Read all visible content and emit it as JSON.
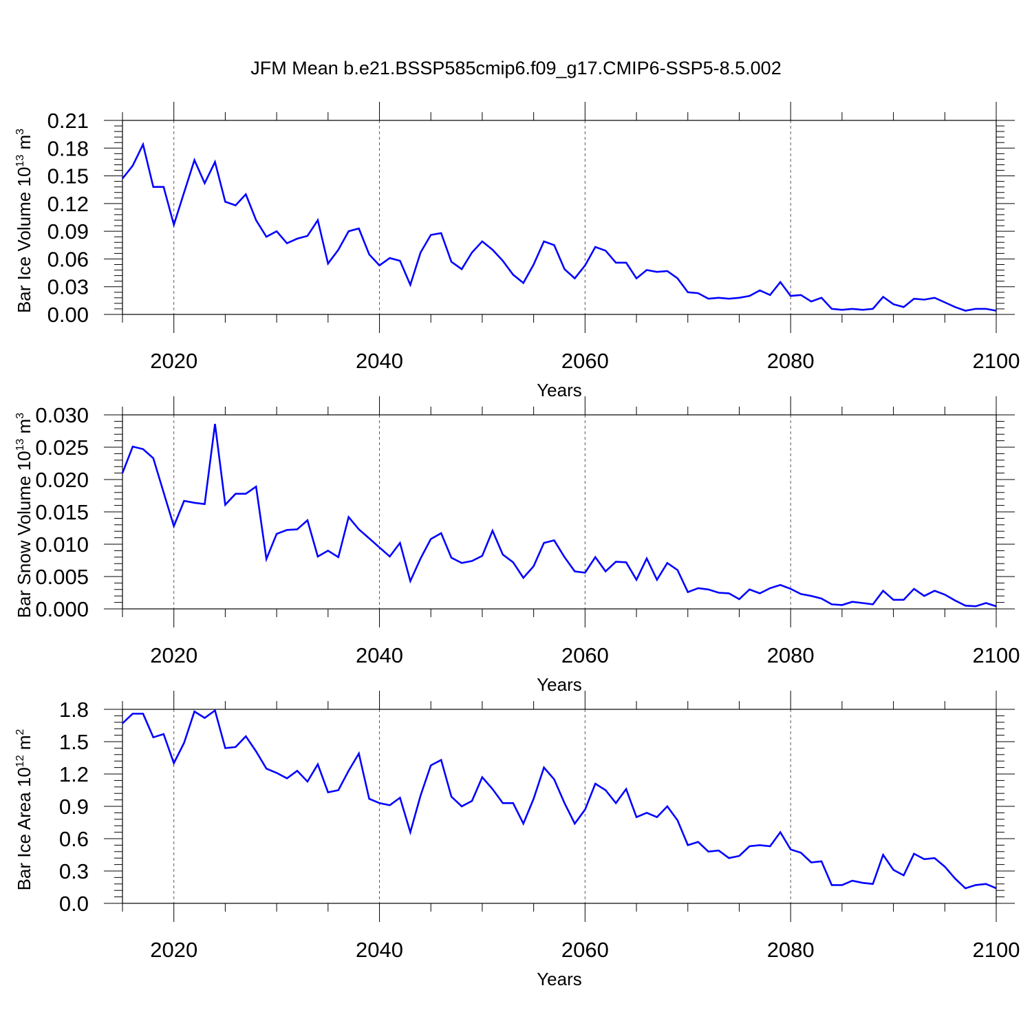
{
  "title": "JFM Mean b.e21.BSSP585cmip6.f09_g17.CMIP6-SSP5-8.5.002",
  "colors": {
    "line": "#0000ff",
    "axis": "#000000",
    "grid": "#000000"
  },
  "chart_data": [
    {
      "type": "line",
      "xlabel": "Years",
      "ylabel": "Bar Ice Volume 10",
      "ylabel_sup": "13",
      "ylabel_unit": " m",
      "ylabel_unit_sup": "3",
      "xlim": [
        2015,
        2100
      ],
      "ylim": [
        0,
        0.21
      ],
      "yticks": [
        "0.00",
        "0.03",
        "0.06",
        "0.09",
        "0.12",
        "0.15",
        "0.18",
        "0.21"
      ],
      "xticks": [
        "2020",
        "2040",
        "2060",
        "2080",
        "2100"
      ],
      "x": [
        2015,
        2016,
        2017,
        2018,
        2019,
        2020,
        2021,
        2022,
        2023,
        2024,
        2025,
        2026,
        2027,
        2028,
        2029,
        2030,
        2031,
        2032,
        2033,
        2034,
        2035,
        2036,
        2037,
        2038,
        2039,
        2040,
        2041,
        2042,
        2043,
        2044,
        2045,
        2046,
        2047,
        2048,
        2049,
        2050,
        2051,
        2052,
        2053,
        2054,
        2055,
        2056,
        2057,
        2058,
        2059,
        2060,
        2061,
        2062,
        2063,
        2064,
        2065,
        2066,
        2067,
        2068,
        2069,
        2070,
        2071,
        2072,
        2073,
        2074,
        2075,
        2076,
        2077,
        2078,
        2079,
        2080,
        2081,
        2082,
        2083,
        2084,
        2085,
        2086,
        2087,
        2088,
        2089,
        2090,
        2091,
        2092,
        2093,
        2094,
        2095,
        2096,
        2097,
        2098,
        2099,
        2100
      ],
      "values": [
        0.147,
        0.161,
        0.184,
        0.138,
        0.138,
        0.097,
        0.132,
        0.167,
        0.142,
        0.165,
        0.122,
        0.118,
        0.13,
        0.102,
        0.084,
        0.09,
        0.077,
        0.082,
        0.085,
        0.102,
        0.055,
        0.07,
        0.09,
        0.093,
        0.065,
        0.053,
        0.061,
        0.058,
        0.032,
        0.067,
        0.086,
        0.088,
        0.057,
        0.049,
        0.067,
        0.079,
        0.07,
        0.058,
        0.043,
        0.034,
        0.054,
        0.079,
        0.075,
        0.049,
        0.039,
        0.053,
        0.073,
        0.069,
        0.056,
        0.056,
        0.039,
        0.048,
        0.046,
        0.047,
        0.039,
        0.024,
        0.023,
        0.017,
        0.018,
        0.017,
        0.018,
        0.02,
        0.026,
        0.021,
        0.035,
        0.02,
        0.021,
        0.014,
        0.018,
        0.006,
        0.005,
        0.006,
        0.005,
        0.006,
        0.019,
        0.011,
        0.008,
        0.017,
        0.016,
        0.018,
        0.013,
        0.008,
        0.004,
        0.006,
        0.006,
        0.004
      ],
      "grid": "dashed vertical at 2020, 2040, 2060, 2080"
    },
    {
      "type": "line",
      "xlabel": "Years",
      "ylabel": "Bar Snow Volume 10",
      "ylabel_sup": "13",
      "ylabel_unit": " m",
      "ylabel_unit_sup": "3",
      "xlim": [
        2015,
        2100
      ],
      "ylim": [
        0,
        0.03
      ],
      "yticks": [
        "0.000",
        "0.005",
        "0.010",
        "0.015",
        "0.020",
        "0.025",
        "0.030"
      ],
      "xticks": [
        "2020",
        "2040",
        "2060",
        "2080",
        "2100"
      ],
      "x": [
        2015,
        2016,
        2017,
        2018,
        2019,
        2020,
        2021,
        2022,
        2023,
        2024,
        2025,
        2026,
        2027,
        2028,
        2029,
        2030,
        2031,
        2032,
        2033,
        2034,
        2035,
        2036,
        2037,
        2038,
        2039,
        2040,
        2041,
        2042,
        2043,
        2044,
        2045,
        2046,
        2047,
        2048,
        2049,
        2050,
        2051,
        2052,
        2053,
        2054,
        2055,
        2056,
        2057,
        2058,
        2059,
        2060,
        2061,
        2062,
        2063,
        2064,
        2065,
        2066,
        2067,
        2068,
        2069,
        2070,
        2071,
        2072,
        2073,
        2074,
        2075,
        2076,
        2077,
        2078,
        2079,
        2080,
        2081,
        2082,
        2083,
        2084,
        2085,
        2086,
        2087,
        2088,
        2089,
        2090,
        2091,
        2092,
        2093,
        2094,
        2095,
        2096,
        2097,
        2098,
        2099,
        2100
      ],
      "values": [
        0.021,
        0.0251,
        0.0247,
        0.0233,
        0.018,
        0.0128,
        0.0167,
        0.0164,
        0.0162,
        0.0286,
        0.0161,
        0.0178,
        0.0178,
        0.0189,
        0.0077,
        0.0116,
        0.0122,
        0.0123,
        0.0137,
        0.0081,
        0.009,
        0.008,
        0.0142,
        0.0123,
        0.0109,
        0.0095,
        0.0081,
        0.0102,
        0.0043,
        0.0078,
        0.0108,
        0.0117,
        0.0079,
        0.0071,
        0.0074,
        0.0082,
        0.0121,
        0.0084,
        0.0072,
        0.0048,
        0.0066,
        0.0102,
        0.0106,
        0.008,
        0.0058,
        0.0056,
        0.008,
        0.0058,
        0.0073,
        0.0072,
        0.0045,
        0.0078,
        0.0045,
        0.0071,
        0.006,
        0.0026,
        0.0032,
        0.003,
        0.0025,
        0.0024,
        0.0015,
        0.003,
        0.0024,
        0.0032,
        0.0037,
        0.0031,
        0.0023,
        0.002,
        0.0016,
        0.0007,
        0.0006,
        0.0011,
        0.0009,
        0.0007,
        0.0028,
        0.0014,
        0.0014,
        0.0031,
        0.002,
        0.0028,
        0.0022,
        0.0013,
        0.0005,
        0.0004,
        0.0009,
        0.0004
      ],
      "grid": "dashed vertical at 2020, 2040, 2060, 2080"
    },
    {
      "type": "line",
      "xlabel": "Years",
      "ylabel": "Bar Ice Area 10",
      "ylabel_sup": "12",
      "ylabel_unit": " m",
      "ylabel_unit_sup": "2",
      "xlim": [
        2015,
        2100
      ],
      "ylim": [
        0,
        1.8
      ],
      "yticks": [
        "0.0",
        "0.3",
        "0.6",
        "0.9",
        "1.2",
        "1.5",
        "1.8"
      ],
      "xticks": [
        "2020",
        "2040",
        "2060",
        "2080",
        "2100"
      ],
      "x": [
        2015,
        2016,
        2017,
        2018,
        2019,
        2020,
        2021,
        2022,
        2023,
        2024,
        2025,
        2026,
        2027,
        2028,
        2029,
        2030,
        2031,
        2032,
        2033,
        2034,
        2035,
        2036,
        2037,
        2038,
        2039,
        2040,
        2041,
        2042,
        2043,
        2044,
        2045,
        2046,
        2047,
        2048,
        2049,
        2050,
        2051,
        2052,
        2053,
        2054,
        2055,
        2056,
        2057,
        2058,
        2059,
        2060,
        2061,
        2062,
        2063,
        2064,
        2065,
        2066,
        2067,
        2068,
        2069,
        2070,
        2071,
        2072,
        2073,
        2074,
        2075,
        2076,
        2077,
        2078,
        2079,
        2080,
        2081,
        2082,
        2083,
        2084,
        2085,
        2086,
        2087,
        2088,
        2089,
        2090,
        2091,
        2092,
        2093,
        2094,
        2095,
        2096,
        2097,
        2098,
        2099,
        2100
      ],
      "values": [
        1.67,
        1.76,
        1.76,
        1.54,
        1.57,
        1.3,
        1.49,
        1.78,
        1.72,
        1.79,
        1.44,
        1.45,
        1.55,
        1.41,
        1.25,
        1.21,
        1.16,
        1.23,
        1.13,
        1.29,
        1.03,
        1.05,
        1.23,
        1.39,
        0.97,
        0.93,
        0.91,
        0.98,
        0.66,
        1.0,
        1.28,
        1.33,
        0.99,
        0.9,
        0.95,
        1.17,
        1.06,
        0.93,
        0.93,
        0.74,
        0.97,
        1.26,
        1.15,
        0.93,
        0.74,
        0.87,
        1.11,
        1.05,
        0.93,
        1.06,
        0.8,
        0.84,
        0.8,
        0.9,
        0.77,
        0.54,
        0.57,
        0.48,
        0.49,
        0.42,
        0.44,
        0.53,
        0.54,
        0.53,
        0.66,
        0.5,
        0.47,
        0.38,
        0.39,
        0.17,
        0.17,
        0.21,
        0.19,
        0.18,
        0.45,
        0.31,
        0.26,
        0.46,
        0.41,
        0.42,
        0.34,
        0.23,
        0.14,
        0.17,
        0.18,
        0.14
      ],
      "grid": "dashed vertical at 2020, 2040, 2060, 2080"
    }
  ]
}
